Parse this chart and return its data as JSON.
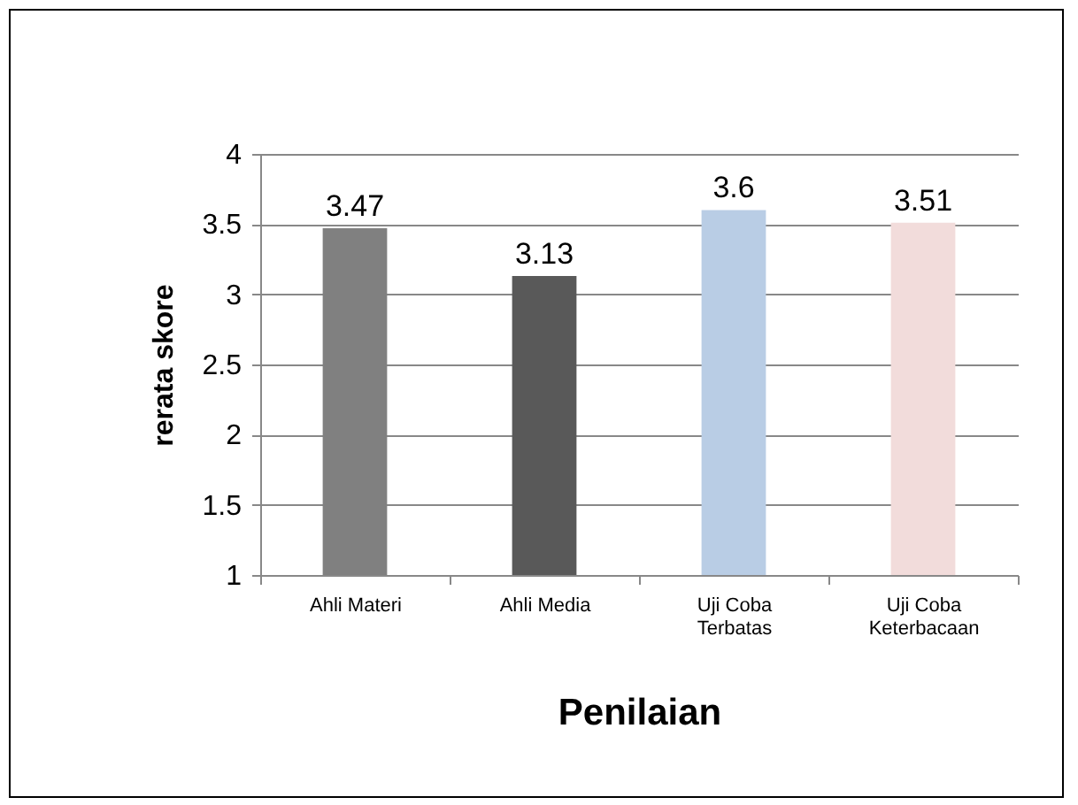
{
  "chart_data": {
    "type": "bar",
    "xlabel": "Penilaian",
    "ylabel": "rerata skore",
    "categories": [
      "Ahli Materi",
      "Ahli Media",
      "Uji Coba Terbatas",
      "Uji Coba Keterbacaan"
    ],
    "values": [
      3.47,
      3.13,
      3.6,
      3.51
    ],
    "colors": [
      "#808080",
      "#595959",
      "#b9cde5",
      "#f2dcdb"
    ],
    "ylim": [
      1,
      4
    ],
    "yticks": [
      1,
      1.5,
      2,
      2.5,
      3,
      3.5,
      4
    ],
    "grid": "y",
    "data_labels": true
  }
}
